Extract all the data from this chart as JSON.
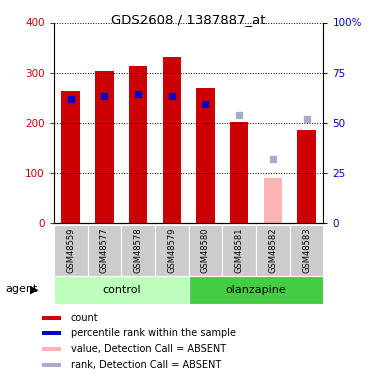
{
  "title": "GDS2608 / 1387887_at",
  "samples": [
    "GSM48559",
    "GSM48577",
    "GSM48578",
    "GSM48579",
    "GSM48580",
    "GSM48581",
    "GSM48582",
    "GSM48583"
  ],
  "count_values": [
    263,
    304,
    313,
    331,
    270,
    202,
    null,
    185
  ],
  "rank_values": [
    248,
    254,
    257,
    253,
    237,
    null,
    null,
    null
  ],
  "count_absent": [
    null,
    null,
    null,
    null,
    null,
    null,
    90,
    null
  ],
  "rank_absent": [
    null,
    null,
    null,
    null,
    null,
    215,
    127,
    207
  ],
  "left_ylim": [
    0,
    400
  ],
  "right_ylim": [
    0,
    100
  ],
  "left_yticks": [
    0,
    100,
    200,
    300,
    400
  ],
  "right_yticks": [
    0,
    25,
    50,
    75,
    100
  ],
  "right_yticklabels": [
    "0",
    "25",
    "50",
    "75",
    "100%"
  ],
  "count_color": "#cc0000",
  "rank_color": "#0000cc",
  "count_absent_color": "#ffb3b3",
  "rank_absent_color": "#aaaacc",
  "label_bg": "#cccccc",
  "control_color": "#bbffbb",
  "olanzapine_color": "#44cc44",
  "agent_label": "agent",
  "legend_items": [
    {
      "label": "count",
      "color": "#cc0000"
    },
    {
      "label": "percentile rank within the sample",
      "color": "#0000cc"
    },
    {
      "label": "value, Detection Call = ABSENT",
      "color": "#ffb3b3"
    },
    {
      "label": "rank, Detection Call = ABSENT",
      "color": "#aaaacc"
    }
  ],
  "groups_info": [
    {
      "label": "control",
      "start": 0,
      "end": 3,
      "color": "#bbffbb"
    },
    {
      "label": "olanzapine",
      "start": 4,
      "end": 7,
      "color": "#44cc44"
    }
  ]
}
